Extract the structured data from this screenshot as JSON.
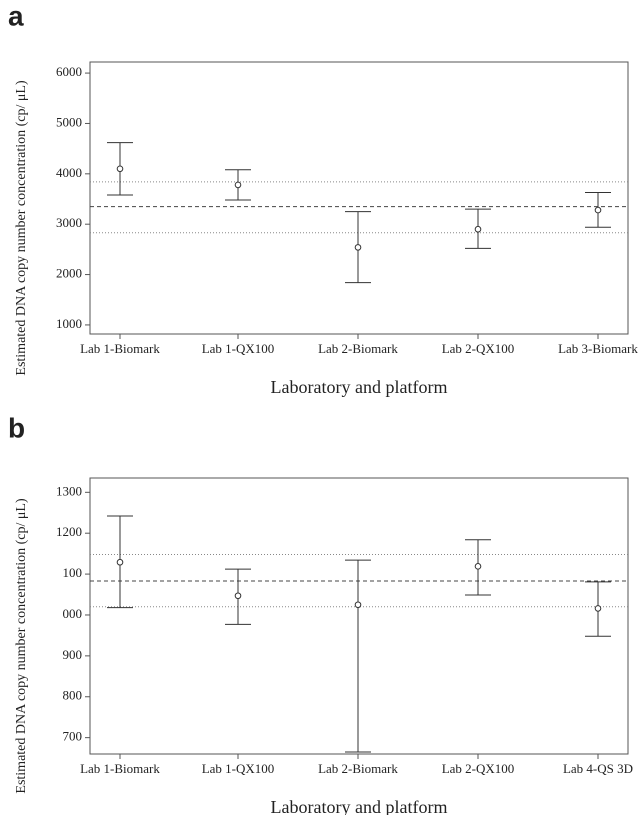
{
  "chart_data": [
    {
      "type": "errorbar",
      "panel_label": "a",
      "y_label": "Estimated DNA copy number concentration (cp/ μL)",
      "x_label": "Laboratory and platform",
      "categories": [
        "Lab 1-Biomark",
        "Lab 1-QX100",
        "Lab 2-Biomark",
        "Lab 2-QX100",
        "Lab 3-Biomark"
      ],
      "values": [
        4100,
        3780,
        2540,
        2900,
        3280
      ],
      "upper": [
        4620,
        4080,
        3250,
        3300,
        3630
      ],
      "lower": [
        3580,
        3480,
        1840,
        2520,
        2940
      ],
      "mean_line": 3350,
      "limit_lines": [
        3840,
        2830
      ],
      "ylim": [
        820,
        6220
      ],
      "yticks": [
        1000,
        2000,
        3000,
        4000,
        5000,
        6000
      ]
    },
    {
      "type": "errorbar",
      "panel_label": "b",
      "y_label": "Estimated DNA copy number concentration (cp/ μL)",
      "x_label": "Laboratory and platform",
      "categories": [
        "Lab 1-Biomark",
        "Lab 1-QX100",
        "Lab 2-Biomark",
        "Lab 2-QX100",
        "Lab 4-QS 3D"
      ],
      "values": [
        1129,
        1047,
        1025,
        1119,
        1016
      ],
      "upper": [
        1242,
        1112,
        1134,
        1184,
        1081
      ],
      "lower": [
        1018,
        977,
        665,
        1049,
        948
      ],
      "mean_line": 1083,
      "limit_lines": [
        1148,
        1020
      ],
      "ylim": [
        660,
        1335
      ],
      "yticks": [
        700,
        800,
        900,
        {
          "value": 1000,
          "label": "000"
        },
        {
          "value": 1100,
          "label": "100"
        },
        1200,
        1300
      ]
    }
  ]
}
